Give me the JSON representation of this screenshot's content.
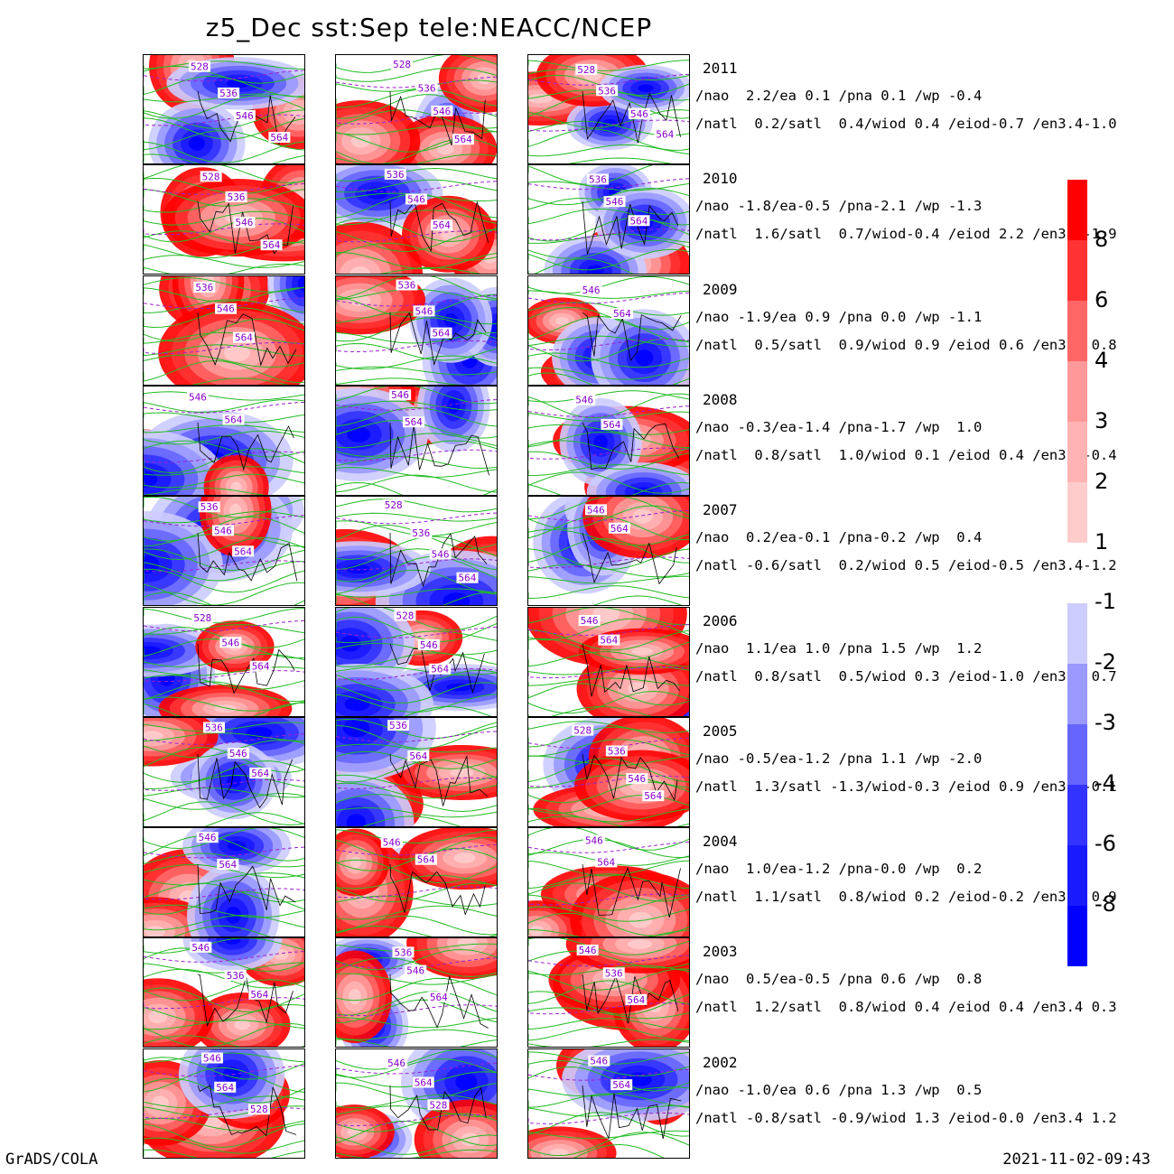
{
  "title": "z5_Dec sst:Sep tele:NEACC/NCEP",
  "footer": {
    "left": "GrADS/COLA",
    "right": "2021-11-02-09:43"
  },
  "colors": {
    "land_contour": "#22bb22",
    "dashed_contour": "#9922cc",
    "label_text": "#8800cc"
  },
  "chart_data": {
    "type": "heatmap",
    "title": "z5_Dec sst:Sep tele:NEACC/NCEP",
    "columns": 3,
    "contour_labels": [
      "528",
      "536",
      "546",
      "564"
    ],
    "colorbar": {
      "positive": {
        "ticks": [
          "8",
          "6",
          "4",
          "3",
          "2",
          "1"
        ],
        "colors": [
          "#ff0000",
          "#ff3333",
          "#ff6666",
          "#ff9999",
          "#ffb3b3",
          "#ffcccc"
        ]
      },
      "negative": {
        "ticks": [
          "-1",
          "-2",
          "-3",
          "-4",
          "-6",
          "-8"
        ],
        "colors": [
          "#ccccff",
          "#9999ff",
          "#6666ff",
          "#3333ff",
          "#1a1aff",
          "#0000ff"
        ]
      }
    },
    "rows": [
      {
        "year": "2011",
        "line1": "/nao  2.2/ea 0.1 /pna 0.1 /wp -0.4",
        "line2": "/natl  0.2/satl  0.4/wiod 0.4 /eiod-0.7 /en3.4-1.0",
        "nao": 2.2,
        "ea": 0.1,
        "pna": 0.1,
        "wp": -0.4,
        "natl": 0.2,
        "satl": 0.4,
        "wiod": 0.4,
        "eiod": -0.7,
        "en34": -1.0,
        "panels": [
          {
            "labels": [
              "528",
              "536",
              "546",
              "564"
            ]
          },
          {
            "labels": [
              "528",
              "536",
              "546",
              "564"
            ]
          },
          {
            "labels": [
              "528",
              "536",
              "546",
              "564"
            ]
          }
        ]
      },
      {
        "year": "2010",
        "line1": "/nao -1.8/ea-0.5 /pna-2.1 /wp -1.3",
        "line2": "/natl  1.6/satl  0.7/wiod-0.4 /eiod 2.2 /en3.4-1.9",
        "nao": -1.8,
        "ea": -0.5,
        "pna": -2.1,
        "wp": -1.3,
        "natl": 1.6,
        "satl": 0.7,
        "wiod": -0.4,
        "eiod": 2.2,
        "en34": -1.9,
        "panels": [
          {
            "labels": [
              "528",
              "536",
              "546",
              "564"
            ]
          },
          {
            "labels": [
              "536",
              "546",
              "564"
            ]
          },
          {
            "labels": [
              "536",
              "546",
              "564"
            ]
          }
        ]
      },
      {
        "year": "2009",
        "line1": "/nao -1.9/ea 0.9 /pna 0.0 /wp -1.1",
        "line2": "/natl  0.5/satl  0.9/wiod 0.9 /eiod 0.6 /en3.4 0.8",
        "nao": -1.9,
        "ea": 0.9,
        "pna": 0.0,
        "wp": -1.1,
        "natl": 0.5,
        "satl": 0.9,
        "wiod": 0.9,
        "eiod": 0.6,
        "en34": 0.8,
        "panels": [
          {
            "labels": [
              "536",
              "546",
              "564"
            ]
          },
          {
            "labels": [
              "536",
              "546",
              "564"
            ]
          },
          {
            "labels": [
              "546",
              "564"
            ]
          }
        ]
      },
      {
        "year": "2008",
        "line1": "/nao -0.3/ea-1.4 /pna-1.7 /wp  1.0",
        "line2": "/natl  0.8/satl  1.0/wiod 0.1 /eiod 0.4 /en3.4-0.4",
        "nao": -0.3,
        "ea": -1.4,
        "pna": -1.7,
        "wp": 1.0,
        "natl": 0.8,
        "satl": 1.0,
        "wiod": 0.1,
        "eiod": 0.4,
        "en34": -0.4,
        "panels": [
          {
            "labels": [
              "546",
              "564"
            ]
          },
          {
            "labels": [
              "546",
              "564"
            ]
          },
          {
            "labels": [
              "546",
              "564"
            ]
          }
        ]
      },
      {
        "year": "2007",
        "line1": "/nao  0.2/ea-0.1 /pna-0.2 /wp  0.4",
        "line2": "/natl -0.6/satl  0.2/wiod 0.5 /eiod-0.5 /en3.4-1.2",
        "nao": 0.2,
        "ea": -0.1,
        "pna": -0.2,
        "wp": 0.4,
        "natl": -0.6,
        "satl": 0.2,
        "wiod": 0.5,
        "eiod": -0.5,
        "en34": -1.2,
        "panels": [
          {
            "labels": [
              "536",
              "546",
              "564"
            ]
          },
          {
            "labels": [
              "528",
              "536",
              "546",
              "564"
            ]
          },
          {
            "labels": [
              "546",
              "564"
            ]
          }
        ]
      },
      {
        "year": "2006",
        "line1": "/nao  1.1/ea 1.0 /pna 1.5 /wp  1.2",
        "line2": "/natl  0.8/satl  0.5/wiod 0.3 /eiod-1.0 /en3.4 0.7",
        "nao": 1.1,
        "ea": 1.0,
        "pna": 1.5,
        "wp": 1.2,
        "natl": 0.8,
        "satl": 0.5,
        "wiod": 0.3,
        "eiod": -1.0,
        "en34": 0.7,
        "panels": [
          {
            "labels": [
              "528",
              "546",
              "564"
            ]
          },
          {
            "labels": [
              "528",
              "546",
              "564"
            ]
          },
          {
            "labels": [
              "546",
              "564"
            ]
          }
        ]
      },
      {
        "year": "2005",
        "line1": "/nao -0.5/ea-1.2 /pna 1.1 /wp -2.0",
        "line2": "/natl  1.3/satl -1.3/wiod-0.3 /eiod 0.9 /en3.4-0.1",
        "nao": -0.5,
        "ea": -1.2,
        "pna": 1.1,
        "wp": -2.0,
        "natl": 1.3,
        "satl": -1.3,
        "wiod": -0.3,
        "eiod": 0.9,
        "en34": -0.1,
        "panels": [
          {
            "labels": [
              "536",
              "546",
              "564"
            ]
          },
          {
            "labels": [
              "536",
              "564"
            ]
          },
          {
            "labels": [
              "528",
              "536",
              "546",
              "564"
            ]
          }
        ]
      },
      {
        "year": "2004",
        "line1": "/nao  1.0/ea-1.2 /pna-0.0 /wp  0.2",
        "line2": "/natl  1.1/satl  0.8/wiod 0.2 /eiod-0.2 /en3.4 0.9",
        "nao": 1.0,
        "ea": -1.2,
        "pna": -0.0,
        "wp": 0.2,
        "natl": 1.1,
        "satl": 0.8,
        "wiod": 0.2,
        "eiod": -0.2,
        "en34": 0.9,
        "panels": [
          {
            "labels": [
              "546",
              "564"
            ]
          },
          {
            "labels": [
              "546",
              "564"
            ]
          },
          {
            "labels": [
              "546",
              "564"
            ]
          }
        ]
      },
      {
        "year": "2003",
        "line1": "/nao  0.5/ea-0.5 /pna 0.6 /wp  0.8",
        "line2": "/natl  1.2/satl  0.8/wiod 0.4 /eiod 0.4 /en3.4 0.3",
        "nao": 0.5,
        "ea": -0.5,
        "pna": 0.6,
        "wp": 0.8,
        "natl": 1.2,
        "satl": 0.8,
        "wiod": 0.4,
        "eiod": 0.4,
        "en34": 0.3,
        "panels": [
          {
            "labels": [
              "546",
              "536",
              "564"
            ]
          },
          {
            "labels": [
              "536",
              "546",
              "564"
            ]
          },
          {
            "labels": [
              "546",
              "536",
              "564"
            ]
          }
        ]
      },
      {
        "year": "2002",
        "line1": "/nao -1.0/ea 0.6 /pna 1.3 /wp  0.5",
        "line2": "/natl -0.8/satl -0.9/wiod 1.3 /eiod-0.0 /en3.4 1.2",
        "nao": -1.0,
        "ea": 0.6,
        "pna": 1.3,
        "wp": 0.5,
        "natl": -0.8,
        "satl": -0.9,
        "wiod": 1.3,
        "eiod": -0.0,
        "en34": 1.2,
        "panels": [
          {
            "labels": [
              "546",
              "564",
              "528"
            ]
          },
          {
            "labels": [
              "546",
              "564",
              "528"
            ]
          },
          {
            "labels": [
              "546",
              "564"
            ]
          }
        ]
      }
    ]
  }
}
